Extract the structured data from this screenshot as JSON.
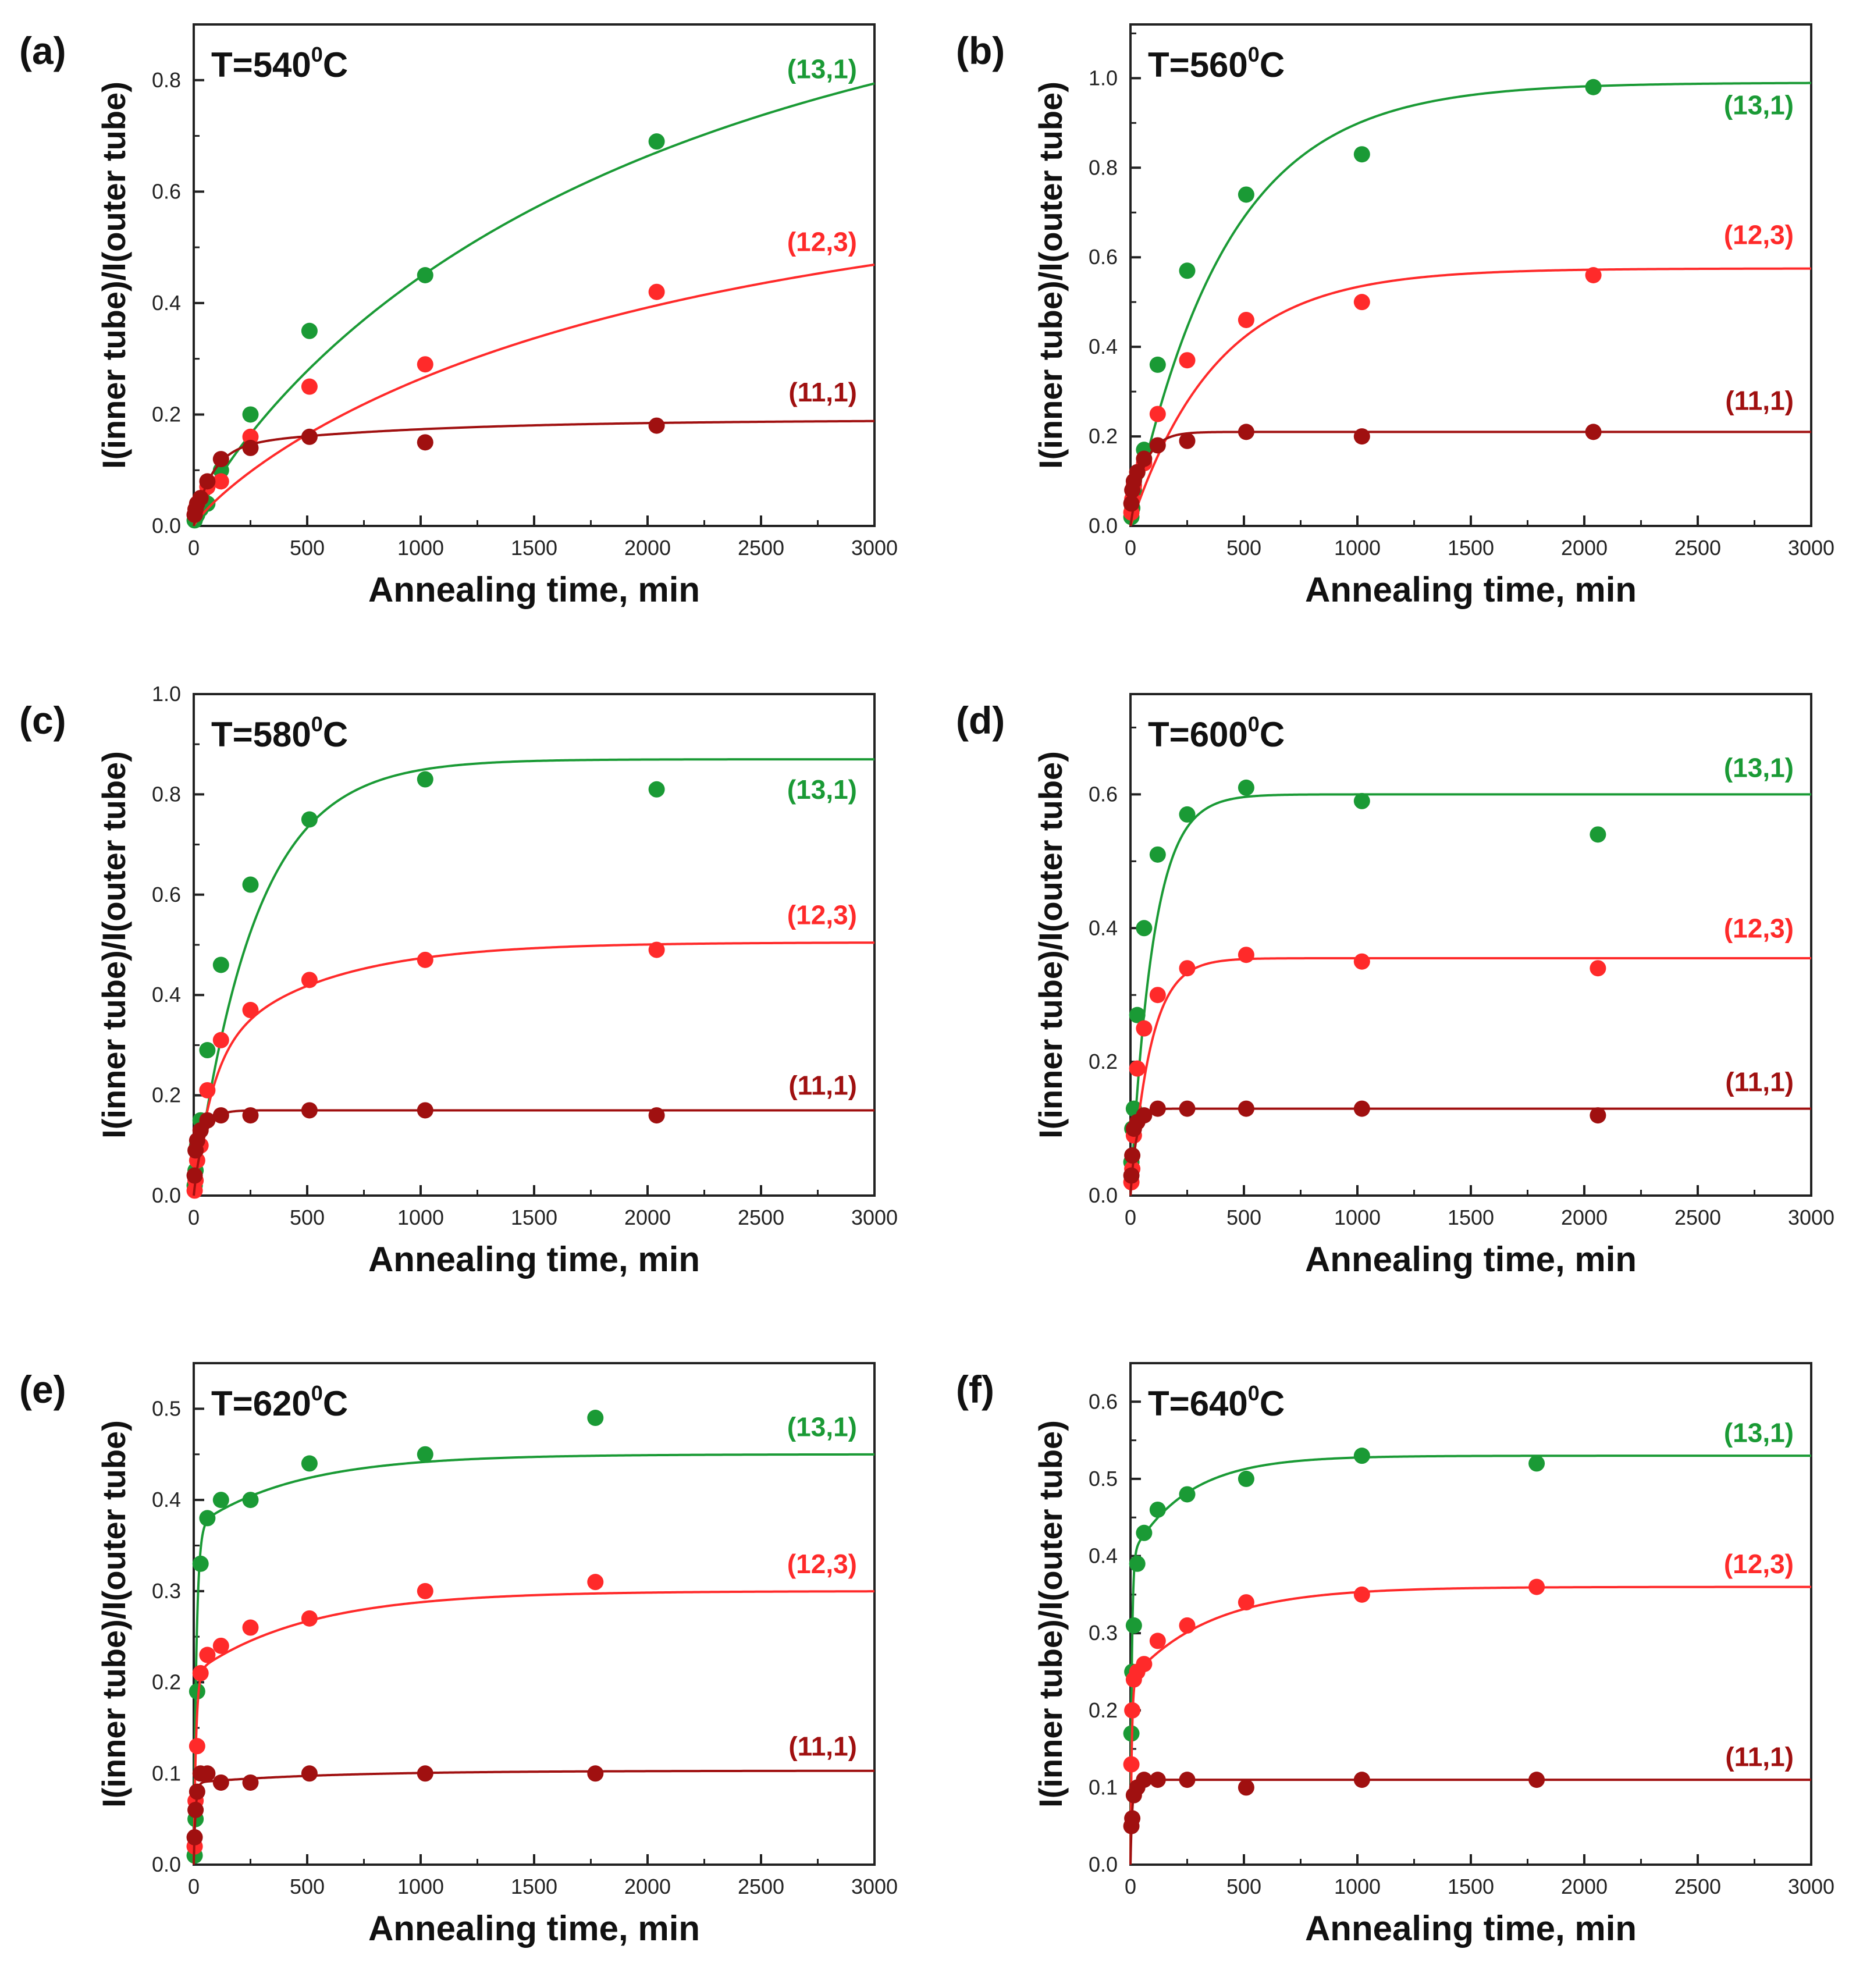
{
  "figure": {
    "x_label": "Annealing time, min",
    "y_label": "I(inner tube)/I(outer tube)"
  },
  "chart_data": [
    {
      "type": "scatter",
      "panel_label": "(a)",
      "title": "T=540",
      "title_sup": "0",
      "title_unit": "C",
      "xlabel": "Annealing time, min",
      "ylabel": "I(inner tube)/I(outer tube)",
      "xlim": [
        0,
        3000
      ],
      "ylim": [
        0,
        0.9
      ],
      "x_ticks": [
        0,
        500,
        1000,
        1500,
        2000,
        2500,
        3000
      ],
      "y_ticks": [
        0.0,
        0.2,
        0.4,
        0.6,
        0.8
      ],
      "y_tick_decimals": 1,
      "series": [
        {
          "name": "(13,1)",
          "color": "#1a9a35",
          "x": [
            4,
            8,
            15,
            30,
            60,
            120,
            250,
            510,
            1020,
            2040
          ],
          "y": [
            0.01,
            0.015,
            0.02,
            0.03,
            0.04,
            0.1,
            0.2,
            0.35,
            0.45,
            0.69
          ],
          "fit": {
            "kind": "stretched",
            "A": 1.05,
            "tau": 2000,
            "beta": 0.85,
            "y0": 0
          },
          "label_value": 0.82
        },
        {
          "name": "(12,3)",
          "color": "#ff2a2a",
          "x": [
            4,
            8,
            15,
            30,
            60,
            120,
            250,
            510,
            1020,
            2040
          ],
          "y": [
            0.02,
            0.03,
            0.04,
            0.05,
            0.07,
            0.08,
            0.16,
            0.25,
            0.29,
            0.42
          ],
          "fit": {
            "kind": "stretched",
            "A": 0.62,
            "tau": 2000,
            "beta": 0.85,
            "y0": 0
          },
          "label_value": 0.51
        },
        {
          "name": "(11,1)",
          "color": "#a01010",
          "x": [
            4,
            8,
            15,
            30,
            60,
            120,
            250,
            510,
            1020,
            2040
          ],
          "y": [
            0.02,
            0.03,
            0.04,
            0.05,
            0.08,
            0.12,
            0.14,
            0.16,
            0.15,
            0.18
          ],
          "fit": {
            "kind": "twophase",
            "A1": 0.14,
            "t1": 80,
            "A2": 0.05,
            "t2": 900,
            "y0": 0
          },
          "label_value": 0.24
        }
      ]
    },
    {
      "type": "scatter",
      "panel_label": "(b)",
      "title": "T=560",
      "title_sup": "0",
      "title_unit": "C",
      "xlabel": "Annealing time, min",
      "ylabel": "I(inner tube)/I(outer tube)",
      "xlim": [
        0,
        3000
      ],
      "ylim": [
        0,
        1.12
      ],
      "x_ticks": [
        0,
        500,
        1000,
        1500,
        2000,
        2500,
        3000
      ],
      "y_ticks": [
        0.0,
        0.2,
        0.4,
        0.6,
        0.8,
        1.0
      ],
      "y_tick_decimals": 1,
      "series": [
        {
          "name": "(13,1)",
          "color": "#1a9a35",
          "x": [
            4,
            8,
            15,
            30,
            60,
            120,
            250,
            510,
            1020,
            2040
          ],
          "y": [
            0.02,
            0.04,
            0.08,
            0.12,
            0.17,
            0.36,
            0.57,
            0.74,
            0.83,
            0.98
          ],
          "fit": {
            "kind": "exp",
            "A": 0.99,
            "tau": 420,
            "y0": 0
          },
          "label_value": 0.94
        },
        {
          "name": "(12,3)",
          "color": "#ff2a2a",
          "x": [
            4,
            8,
            15,
            30,
            60,
            120,
            250,
            510,
            1020,
            2040
          ],
          "y": [
            0.03,
            0.06,
            0.09,
            0.12,
            0.14,
            0.25,
            0.37,
            0.46,
            0.5,
            0.56
          ],
          "fit": {
            "kind": "exp",
            "A": 0.575,
            "tau": 380,
            "y0": 0
          },
          "label_value": 0.65
        },
        {
          "name": "(11,1)",
          "color": "#a01010",
          "x": [
            4,
            8,
            15,
            30,
            60,
            120,
            250,
            510,
            1020,
            2040
          ],
          "y": [
            0.05,
            0.08,
            0.1,
            0.12,
            0.15,
            0.18,
            0.19,
            0.21,
            0.2,
            0.21
          ],
          "fit": {
            "kind": "exp",
            "A": 0.21,
            "tau": 60,
            "y0": 0
          },
          "label_value": 0.28
        }
      ]
    },
    {
      "type": "scatter",
      "panel_label": "(c)",
      "title": "T=580",
      "title_sup": "0",
      "title_unit": "C",
      "xlabel": "Annealing time, min",
      "ylabel": "I(inner tube)/I(outer tube)",
      "xlim": [
        0,
        3000
      ],
      "ylim": [
        0,
        1.0
      ],
      "x_ticks": [
        0,
        500,
        1000,
        1500,
        2000,
        2500,
        3000
      ],
      "y_ticks": [
        0.0,
        0.2,
        0.4,
        0.6,
        0.8,
        1.0
      ],
      "y_tick_decimals": 1,
      "series": [
        {
          "name": "(13,1)",
          "color": "#1a9a35",
          "x": [
            4,
            8,
            15,
            30,
            60,
            120,
            250,
            510,
            1020,
            2040
          ],
          "y": [
            0.02,
            0.05,
            0.1,
            0.15,
            0.29,
            0.46,
            0.62,
            0.75,
            0.83,
            0.81
          ],
          "fit": {
            "kind": "exp",
            "A": 0.87,
            "tau": 270,
            "y0": 0
          },
          "label_value": 0.81
        },
        {
          "name": "(12,3)",
          "color": "#ff2a2a",
          "x": [
            4,
            8,
            15,
            30,
            60,
            120,
            250,
            510,
            1020,
            2040
          ],
          "y": [
            0.01,
            0.03,
            0.07,
            0.1,
            0.21,
            0.31,
            0.37,
            0.43,
            0.47,
            0.49
          ],
          "fit": {
            "kind": "twophase",
            "A1": 0.27,
            "t1": 80,
            "A2": 0.235,
            "t2": 500,
            "y0": 0
          },
          "label_value": 0.56
        },
        {
          "name": "(11,1)",
          "color": "#a01010",
          "x": [
            4,
            8,
            15,
            30,
            60,
            120,
            250,
            510,
            1020,
            2040
          ],
          "y": [
            0.04,
            0.09,
            0.11,
            0.13,
            0.15,
            0.16,
            0.16,
            0.17,
            0.17,
            0.16
          ],
          "fit": {
            "kind": "exp",
            "A": 0.17,
            "tau": 40,
            "y0": 0
          },
          "label_value": 0.22
        }
      ]
    },
    {
      "type": "scatter",
      "panel_label": "(d)",
      "title": "T=600",
      "title_sup": "0",
      "title_unit": "C",
      "xlabel": "Annealing time, min",
      "ylabel": "I(inner tube)/I(outer tube)",
      "xlim": [
        0,
        3000
      ],
      "ylim": [
        0,
        0.75
      ],
      "x_ticks": [
        0,
        500,
        1000,
        1500,
        2000,
        2500,
        3000
      ],
      "y_ticks": [
        0.0,
        0.2,
        0.4,
        0.6
      ],
      "y_tick_decimals": 1,
      "series": [
        {
          "name": "(13,1)",
          "color": "#1a9a35",
          "x": [
            4,
            8,
            15,
            30,
            60,
            120,
            250,
            510,
            1020,
            2060
          ],
          "y": [
            0.05,
            0.1,
            0.13,
            0.27,
            0.4,
            0.51,
            0.57,
            0.61,
            0.59,
            0.54
          ],
          "fit": {
            "kind": "exp",
            "A": 0.6,
            "tau": 100,
            "y0": 0
          },
          "label_value": 0.64
        },
        {
          "name": "(12,3)",
          "color": "#ff2a2a",
          "x": [
            4,
            8,
            15,
            30,
            60,
            120,
            250,
            510,
            1020,
            2060
          ],
          "y": [
            0.02,
            0.04,
            0.09,
            0.19,
            0.25,
            0.3,
            0.34,
            0.36,
            0.35,
            0.34
          ],
          "fit": {
            "kind": "exp",
            "A": 0.355,
            "tau": 90,
            "y0": 0
          },
          "label_value": 0.4
        },
        {
          "name": "(11,1)",
          "color": "#a01010",
          "x": [
            4,
            8,
            15,
            30,
            60,
            120,
            250,
            510,
            1020,
            2060
          ],
          "y": [
            0.03,
            0.06,
            0.1,
            0.11,
            0.12,
            0.13,
            0.13,
            0.13,
            0.13,
            0.12
          ],
          "fit": {
            "kind": "exp",
            "A": 0.13,
            "tau": 25,
            "y0": 0
          },
          "label_value": 0.17
        }
      ]
    },
    {
      "type": "scatter",
      "panel_label": "(e)",
      "title": "T=620",
      "title_sup": "0",
      "title_unit": "C",
      "xlabel": "Annealing time, min",
      "ylabel": "I(inner tube)/I(outer tube)",
      "xlim": [
        0,
        3000
      ],
      "ylim": [
        0,
        0.55
      ],
      "x_ticks": [
        0,
        500,
        1000,
        1500,
        2000,
        2500,
        3000
      ],
      "y_ticks": [
        0.0,
        0.1,
        0.2,
        0.3,
        0.4,
        0.5
      ],
      "y_tick_decimals": 1,
      "series": [
        {
          "name": "(13,1)",
          "color": "#1a9a35",
          "x": [
            4,
            8,
            15,
            30,
            60,
            120,
            250,
            510,
            1020,
            1770
          ],
          "y": [
            0.01,
            0.05,
            0.19,
            0.33,
            0.38,
            0.4,
            0.4,
            0.44,
            0.45,
            0.49
          ],
          "fit": {
            "kind": "twophase",
            "A1": 0.37,
            "t1": 12,
            "A2": 0.08,
            "t2": 450,
            "y0": 0
          },
          "label_value": 0.48
        },
        {
          "name": "(12,3)",
          "color": "#ff2a2a",
          "x": [
            4,
            8,
            15,
            30,
            60,
            120,
            250,
            510,
            1020,
            1770
          ],
          "y": [
            0.02,
            0.07,
            0.13,
            0.21,
            0.23,
            0.24,
            0.26,
            0.27,
            0.3,
            0.31
          ],
          "fit": {
            "kind": "twophase",
            "A1": 0.21,
            "t1": 10,
            "A2": 0.09,
            "t2": 500,
            "y0": 0
          },
          "label_value": 0.33
        },
        {
          "name": "(11,1)",
          "color": "#a01010",
          "x": [
            4,
            8,
            15,
            30,
            60,
            120,
            250,
            510,
            1020,
            1770
          ],
          "y": [
            0.03,
            0.06,
            0.08,
            0.1,
            0.1,
            0.09,
            0.09,
            0.1,
            0.1,
            0.1
          ],
          "fit": {
            "kind": "twophase",
            "A1": 0.09,
            "t1": 8,
            "A2": 0.013,
            "t2": 600,
            "y0": 0
          },
          "label_value": 0.13
        }
      ]
    },
    {
      "type": "scatter",
      "panel_label": "(f)",
      "title": "T=640",
      "title_sup": "0",
      "title_unit": "C",
      "xlabel": "Annealing time, min",
      "ylabel": "I(inner tube)/I(outer tube)",
      "xlim": [
        0,
        3000
      ],
      "ylim": [
        0,
        0.65
      ],
      "x_ticks": [
        0,
        500,
        1000,
        1500,
        2000,
        2500,
        3000
      ],
      "y_ticks": [
        0.0,
        0.1,
        0.2,
        0.3,
        0.4,
        0.5,
        0.6
      ],
      "y_tick_decimals": 1,
      "series": [
        {
          "name": "(13,1)",
          "color": "#1a9a35",
          "x": [
            4,
            8,
            15,
            30,
            60,
            120,
            250,
            510,
            1020,
            1790
          ],
          "y": [
            0.17,
            0.25,
            0.31,
            0.39,
            0.43,
            0.46,
            0.48,
            0.5,
            0.53,
            0.52
          ],
          "fit": {
            "kind": "twophase",
            "A1": 0.4,
            "t1": 6,
            "A2": 0.13,
            "t2": 250,
            "y0": 0
          },
          "label_value": 0.56
        },
        {
          "name": "(12,3)",
          "color": "#ff2a2a",
          "x": [
            4,
            8,
            15,
            30,
            60,
            120,
            250,
            510,
            1020,
            1790
          ],
          "y": [
            0.13,
            0.2,
            0.24,
            0.25,
            0.26,
            0.29,
            0.31,
            0.34,
            0.35,
            0.36
          ],
          "fit": {
            "kind": "twophase",
            "A1": 0.24,
            "t1": 6,
            "A2": 0.12,
            "t2": 350,
            "y0": 0
          },
          "label_value": 0.39
        },
        {
          "name": "(11,1)",
          "color": "#a01010",
          "x": [
            4,
            8,
            15,
            30,
            60,
            120,
            250,
            510,
            1020,
            1790
          ],
          "y": [
            0.05,
            0.06,
            0.09,
            0.1,
            0.11,
            0.11,
            0.11,
            0.1,
            0.11,
            0.11
          ],
          "fit": {
            "kind": "exp",
            "A": 0.11,
            "tau": 8,
            "y0": 0
          },
          "label_value": 0.14
        }
      ]
    }
  ]
}
